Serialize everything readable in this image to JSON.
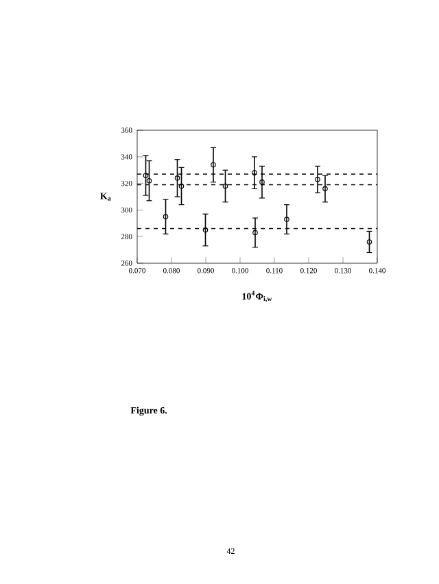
{
  "chart_data": {
    "type": "scatter",
    "xlabel": "10$^{4}$Φ$_{i,w}$",
    "ylabel": "K$_{a}$",
    "annotations": [
      "Figure 6.",
      "42"
    ],
    "x": [
      0.0725,
      0.0735,
      0.0783,
      0.0817,
      0.0829,
      0.0899,
      0.0922,
      0.0957,
      0.1042,
      0.1044,
      0.1064,
      0.1136,
      0.1226,
      0.1248,
      0.1377
    ],
    "values": [
      326,
      322,
      295,
      324,
      318,
      285,
      334,
      318,
      328,
      283,
      321,
      293,
      323,
      316,
      276
    ],
    "errors": [
      15,
      15,
      13,
      14,
      14,
      12,
      13,
      12,
      12,
      11,
      12,
      11,
      10,
      10,
      8
    ],
    "color": "#000000",
    "marker": "circle",
    "grid": false,
    "ref_lines": [
      {
        "axis": "y",
        "value": 327,
        "line_style": "dashed"
      },
      {
        "axis": "y",
        "value": 319,
        "line_style": "dashed"
      },
      {
        "axis": "y",
        "value": 286,
        "line_style": "dashed"
      }
    ],
    "xlim": [
      0.07,
      0.14
    ],
    "ylim": [
      260,
      360
    ],
    "xticks": [
      {
        "value": 0.07,
        "label": "0.070"
      },
      {
        "value": 0.08,
        "label": "0.080"
      },
      {
        "value": 0.09,
        "label": "0.090"
      },
      {
        "value": 0.1,
        "label": "0.100"
      },
      {
        "value": 0.11,
        "label": "0.110"
      },
      {
        "value": 0.12,
        "label": "0.120"
      },
      {
        "value": 0.13,
        "label": "0.130"
      },
      {
        "value": 0.14,
        "label": "0.140"
      }
    ],
    "yticks": [
      260,
      280,
      300,
      320,
      340,
      360
    ]
  }
}
